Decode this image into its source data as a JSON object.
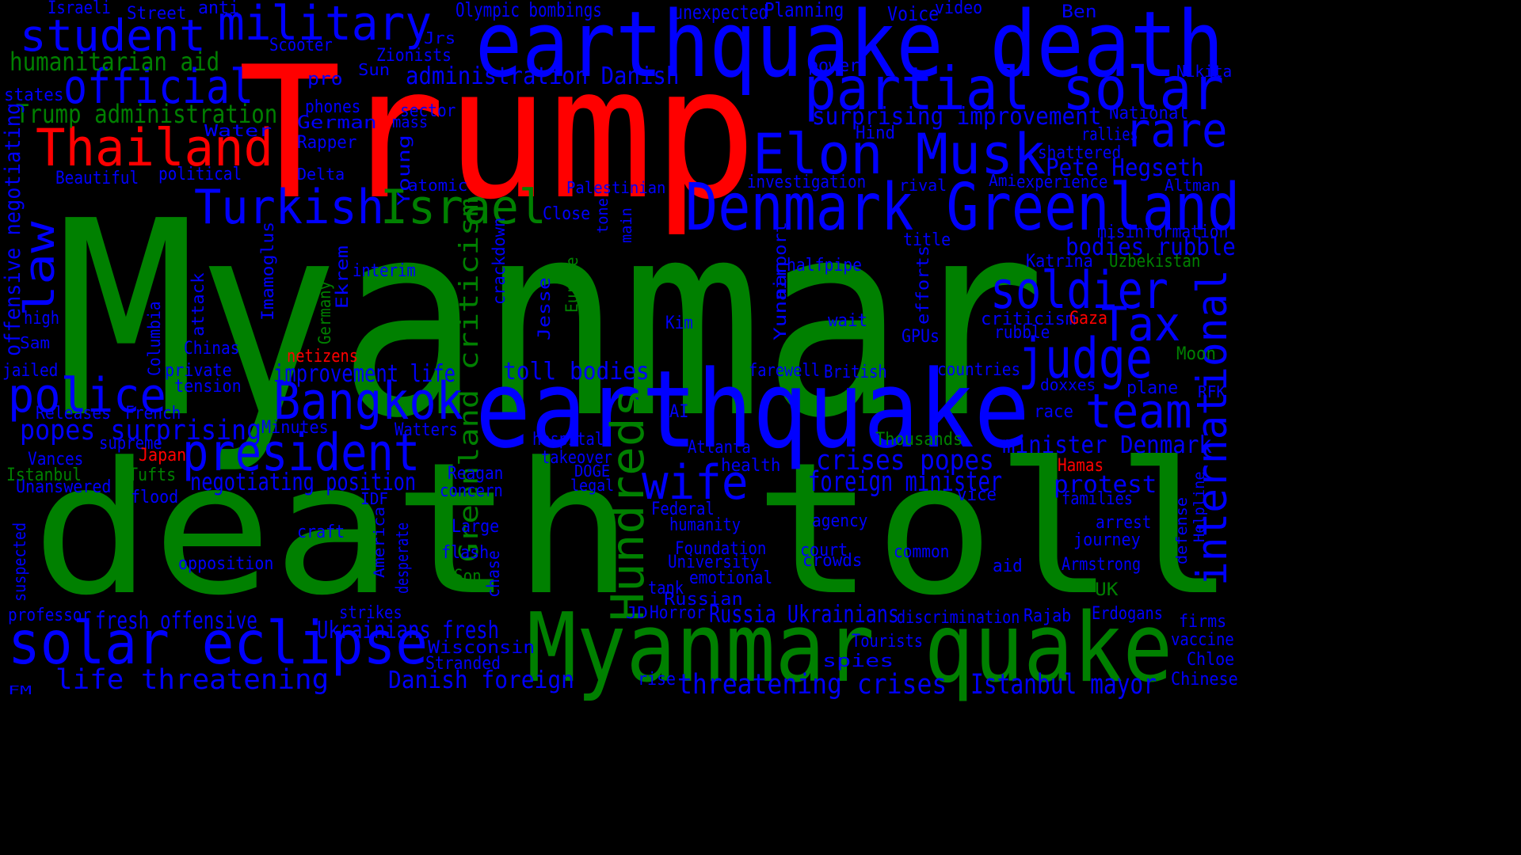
{
  "colors": {
    "background": "#000000",
    "green": "#008000",
    "blue": "#0000ff",
    "red": "#ff0000"
  },
  "words": [
    {
      "text": "Myanmar",
      "color": "green"
    },
    {
      "text": "death toll",
      "color": "green"
    },
    {
      "text": "Trump",
      "color": "red"
    },
    {
      "text": "earthquake death",
      "color": "blue"
    },
    {
      "text": "earthquake",
      "color": "blue"
    },
    {
      "text": "Myanmar quake",
      "color": "green"
    },
    {
      "text": "Denmark Greenland",
      "color": "blue"
    },
    {
      "text": "partial solar",
      "color": "blue"
    },
    {
      "text": "Elon Musk",
      "color": "blue"
    },
    {
      "text": "solar eclipse",
      "color": "blue"
    },
    {
      "text": "official",
      "color": "blue"
    },
    {
      "text": "military",
      "color": "blue"
    },
    {
      "text": "student",
      "color": "blue"
    },
    {
      "text": "Thailand",
      "color": "red"
    },
    {
      "text": "Turkish",
      "color": "blue"
    },
    {
      "text": "Israel",
      "color": "green"
    },
    {
      "text": "president",
      "color": "blue"
    },
    {
      "text": "Bangkok",
      "color": "blue"
    },
    {
      "text": "police",
      "color": "blue"
    },
    {
      "text": "wife",
      "color": "blue"
    },
    {
      "text": "soldier",
      "color": "blue"
    },
    {
      "text": "judge",
      "color": "blue"
    },
    {
      "text": "team",
      "color": "blue"
    },
    {
      "text": "Tax",
      "color": "blue"
    },
    {
      "text": "rare",
      "color": "blue"
    },
    {
      "text": "law",
      "color": "blue"
    },
    {
      "text": "international",
      "color": "blue"
    },
    {
      "text": "Hundreds",
      "color": "green"
    },
    {
      "text": "humanitarian aid",
      "color": "green"
    },
    {
      "text": "Trump administration",
      "color": "green"
    },
    {
      "text": "surprising improvement",
      "color": "blue"
    },
    {
      "text": "Pete Hegseth",
      "color": "blue"
    },
    {
      "text": "administration Danish",
      "color": "blue"
    },
    {
      "text": "toll bodies",
      "color": "blue"
    },
    {
      "text": "crises popes",
      "color": "blue"
    },
    {
      "text": "foreign minister",
      "color": "blue"
    },
    {
      "text": "minister Denmark",
      "color": "blue"
    },
    {
      "text": "popes surprising",
      "color": "blue"
    },
    {
      "text": "negotiating position",
      "color": "blue"
    },
    {
      "text": "improvement life",
      "color": "blue"
    },
    {
      "text": "Greenland criticism",
      "color": "green"
    },
    {
      "text": "life threatening",
      "color": "blue"
    },
    {
      "text": "Danish foreign",
      "color": "blue"
    },
    {
      "text": "threatening crises",
      "color": "blue"
    },
    {
      "text": "Istanbul mayor",
      "color": "blue"
    },
    {
      "text": "Russia Ukrainians",
      "color": "blue"
    },
    {
      "text": "Ukrainians fresh",
      "color": "blue"
    },
    {
      "text": "fresh offensive",
      "color": "blue"
    },
    {
      "text": "offensive negotiating",
      "color": "blue"
    },
    {
      "text": "bodies rubble",
      "color": "blue"
    },
    {
      "text": "protest",
      "color": "blue"
    },
    {
      "text": "Olympic bombings",
      "color": "blue"
    },
    {
      "text": "unexpected",
      "color": "blue"
    },
    {
      "text": "Planning",
      "color": "blue"
    },
    {
      "text": "Voice",
      "color": "blue"
    },
    {
      "text": "video",
      "color": "blue"
    },
    {
      "text": "Ben",
      "color": "blue"
    },
    {
      "text": "Israeli",
      "color": "blue"
    },
    {
      "text": "Street",
      "color": "blue"
    },
    {
      "text": "anti",
      "color": "blue"
    },
    {
      "text": "Jrs",
      "color": "blue"
    },
    {
      "text": "Scooter",
      "color": "blue"
    },
    {
      "text": "Zionists",
      "color": "blue"
    },
    {
      "text": "power",
      "color": "blue"
    },
    {
      "text": "Nikita",
      "color": "blue"
    },
    {
      "text": "Sun",
      "color": "blue"
    },
    {
      "text": "pro",
      "color": "blue"
    },
    {
      "text": "states",
      "color": "blue"
    },
    {
      "text": "phones",
      "color": "blue"
    },
    {
      "text": "sector",
      "color": "blue"
    },
    {
      "text": "mass",
      "color": "blue"
    },
    {
      "text": "German",
      "color": "blue"
    },
    {
      "text": "Water",
      "color": "blue"
    },
    {
      "text": "National",
      "color": "blue"
    },
    {
      "text": "Hind",
      "color": "blue"
    },
    {
      "text": "rallies",
      "color": "blue"
    },
    {
      "text": "Rapper",
      "color": "blue"
    },
    {
      "text": "shattered",
      "color": "blue"
    },
    {
      "text": "Young",
      "color": "blue"
    },
    {
      "text": "Delta",
      "color": "blue"
    },
    {
      "text": "political",
      "color": "blue"
    },
    {
      "text": "Beautiful",
      "color": "blue"
    },
    {
      "text": "atomic",
      "color": "blue"
    },
    {
      "text": "Palestinian",
      "color": "blue"
    },
    {
      "text": "investigation",
      "color": "blue"
    },
    {
      "text": "rival",
      "color": "blue"
    },
    {
      "text": "Ami",
      "color": "blue"
    },
    {
      "text": "experience",
      "color": "blue"
    },
    {
      "text": "Altman",
      "color": "blue"
    },
    {
      "text": "Close",
      "color": "blue"
    },
    {
      "text": "tone",
      "color": "blue"
    },
    {
      "text": "main",
      "color": "blue"
    },
    {
      "text": "title",
      "color": "blue"
    },
    {
      "text": "misinformation",
      "color": "blue"
    },
    {
      "text": "Katrina",
      "color": "blue"
    },
    {
      "text": "Uzbekistan",
      "color": "green"
    },
    {
      "text": "airport",
      "color": "blue"
    },
    {
      "text": "halfpipe",
      "color": "blue"
    },
    {
      "text": "Yunnan",
      "color": "blue"
    },
    {
      "text": "efforts",
      "color": "blue"
    },
    {
      "text": "interim",
      "color": "blue"
    },
    {
      "text": "Ekrem",
      "color": "blue"
    },
    {
      "text": "Imamoglus",
      "color": "blue"
    },
    {
      "text": "crackdown",
      "color": "blue"
    },
    {
      "text": "Europe",
      "color": "green"
    },
    {
      "text": "Jesse",
      "color": "blue"
    },
    {
      "text": "Germany",
      "color": "green"
    },
    {
      "text": "attack",
      "color": "blue"
    },
    {
      "text": "Columbia",
      "color": "blue"
    },
    {
      "text": "high",
      "color": "blue"
    },
    {
      "text": "wait",
      "color": "blue"
    },
    {
      "text": "Kim",
      "color": "blue"
    },
    {
      "text": "criticism",
      "color": "blue"
    },
    {
      "text": "Gaza",
      "color": "red"
    },
    {
      "text": "rubble",
      "color": "blue"
    },
    {
      "text": "GPUs",
      "color": "blue"
    },
    {
      "text": "Sam",
      "color": "blue"
    },
    {
      "text": "Chinas",
      "color": "blue"
    },
    {
      "text": "netizens",
      "color": "red"
    },
    {
      "text": "Moon",
      "color": "green"
    },
    {
      "text": "jailed",
      "color": "blue"
    },
    {
      "text": "private",
      "color": "blue"
    },
    {
      "text": "farewell",
      "color": "blue"
    },
    {
      "text": "British",
      "color": "blue"
    },
    {
      "text": "countries",
      "color": "blue"
    },
    {
      "text": "doxxes",
      "color": "blue"
    },
    {
      "text": "tension",
      "color": "blue"
    },
    {
      "text": "plane",
      "color": "blue"
    },
    {
      "text": "RFK",
      "color": "blue"
    },
    {
      "text": "Releases",
      "color": "blue"
    },
    {
      "text": "French",
      "color": "blue"
    },
    {
      "text": "AI",
      "color": "blue"
    },
    {
      "text": "race",
      "color": "blue"
    },
    {
      "text": "Minutes",
      "color": "blue"
    },
    {
      "text": "Watters",
      "color": "blue"
    },
    {
      "text": "hospital",
      "color": "blue"
    },
    {
      "text": "Thousands",
      "color": "green"
    },
    {
      "text": "supreme",
      "color": "blue"
    },
    {
      "text": "Atlanta",
      "color": "blue"
    },
    {
      "text": "Japan",
      "color": "red"
    },
    {
      "text": "Vances",
      "color": "blue"
    },
    {
      "text": "takeover",
      "color": "blue"
    },
    {
      "text": "health",
      "color": "blue"
    },
    {
      "text": "Hamas",
      "color": "red"
    },
    {
      "text": "Istanbul",
      "color": "green"
    },
    {
      "text": "Tufts",
      "color": "green"
    },
    {
      "text": "Reagan",
      "color": "blue"
    },
    {
      "text": "DOGE",
      "color": "blue"
    },
    {
      "text": "Unanswered",
      "color": "blue"
    },
    {
      "text": "legal",
      "color": "blue"
    },
    {
      "text": "concern",
      "color": "blue"
    },
    {
      "text": "flood",
      "color": "blue"
    },
    {
      "text": "IDF",
      "color": "blue"
    },
    {
      "text": "vice",
      "color": "blue"
    },
    {
      "text": "families",
      "color": "blue"
    },
    {
      "text": "Federal",
      "color": "blue"
    },
    {
      "text": "Helpline",
      "color": "blue"
    },
    {
      "text": "defense",
      "color": "blue"
    },
    {
      "text": "humanity",
      "color": "blue"
    },
    {
      "text": "agency",
      "color": "blue"
    },
    {
      "text": "arrest",
      "color": "blue"
    },
    {
      "text": "Large",
      "color": "blue"
    },
    {
      "text": "craft",
      "color": "blue"
    },
    {
      "text": "America",
      "color": "blue"
    },
    {
      "text": "journey",
      "color": "blue"
    },
    {
      "text": "Foundation",
      "color": "blue"
    },
    {
      "text": "court",
      "color": "blue"
    },
    {
      "text": "common",
      "color": "blue"
    },
    {
      "text": "suspected",
      "color": "blue"
    },
    {
      "text": "flash",
      "color": "blue"
    },
    {
      "text": "University",
      "color": "blue"
    },
    {
      "text": "crowds",
      "color": "blue"
    },
    {
      "text": "opposition",
      "color": "blue"
    },
    {
      "text": "desperate",
      "color": "blue"
    },
    {
      "text": "chase",
      "color": "blue"
    },
    {
      "text": "aid",
      "color": "blue"
    },
    {
      "text": "Armstrong",
      "color": "blue"
    },
    {
      "text": "Son",
      "color": "green"
    },
    {
      "text": "emotional",
      "color": "blue"
    },
    {
      "text": "tank",
      "color": "blue"
    },
    {
      "text": "UK",
      "color": "green"
    },
    {
      "text": "Russian",
      "color": "blue"
    },
    {
      "text": "professor",
      "color": "blue"
    },
    {
      "text": "strikes",
      "color": "blue"
    },
    {
      "text": "JD",
      "color": "blue"
    },
    {
      "text": "Horror",
      "color": "blue"
    },
    {
      "text": "discrimination",
      "color": "blue"
    },
    {
      "text": "Rajab",
      "color": "blue"
    },
    {
      "text": "Erdogans",
      "color": "blue"
    },
    {
      "text": "firms",
      "color": "blue"
    },
    {
      "text": "vaccine",
      "color": "blue"
    },
    {
      "text": "Tourists",
      "color": "blue"
    },
    {
      "text": "Wisconsin",
      "color": "blue"
    },
    {
      "text": "spies",
      "color": "blue"
    },
    {
      "text": "Chloe",
      "color": "blue"
    },
    {
      "text": "Stranded",
      "color": "blue"
    },
    {
      "text": "rise",
      "color": "blue"
    },
    {
      "text": "Chinese",
      "color": "blue"
    },
    {
      "text": "FM",
      "color": "blue"
    }
  ]
}
